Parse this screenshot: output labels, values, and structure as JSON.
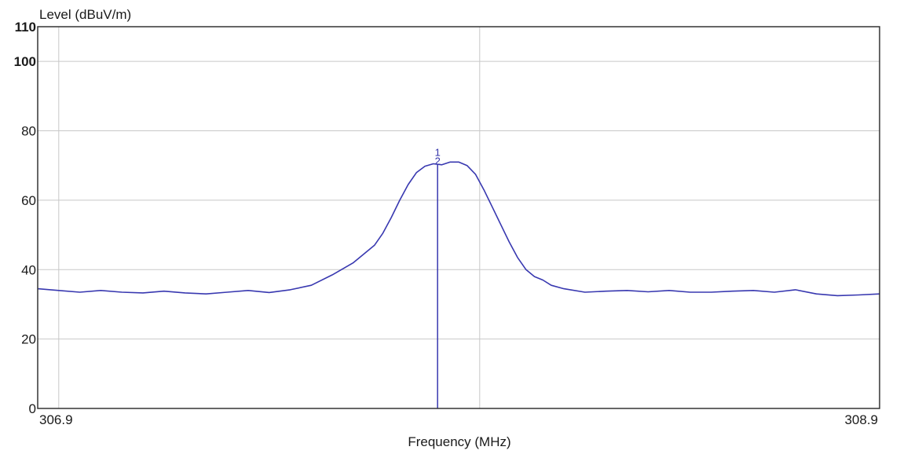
{
  "chart_data": {
    "type": "line",
    "title": "",
    "xlabel": "Frequency (MHz)",
    "ylabel": "Level (dBuV/m)",
    "xlim": [
      306.9,
      308.9
    ],
    "ylim": [
      0,
      110
    ],
    "x_tick_labels": [
      "306.9",
      "308.9"
    ],
    "y_tick_labels": [
      "0",
      "20",
      "40",
      "60",
      "80",
      "100",
      "110"
    ],
    "y_ticks": [
      0,
      20,
      40,
      60,
      80,
      100,
      110
    ],
    "grid": true,
    "line_color": "#3838b0",
    "series": [
      {
        "x": [
          306.9,
          306.95,
          307.0,
          307.05,
          307.1,
          307.15,
          307.2,
          307.25,
          307.3,
          307.35,
          307.4,
          307.45,
          307.5,
          307.55,
          307.6,
          307.65,
          307.7,
          307.72,
          307.74,
          307.76,
          307.78,
          307.8,
          307.82,
          307.84,
          307.86,
          307.88,
          307.9,
          307.92,
          307.94,
          307.96,
          307.98,
          308.0,
          308.02,
          308.04,
          308.06,
          308.08,
          308.1,
          308.12,
          308.15,
          308.2,
          308.25,
          308.3,
          308.35,
          308.4,
          308.45,
          308.5,
          308.55,
          308.6,
          308.65,
          308.7,
          308.75,
          308.8,
          308.85,
          308.9
        ],
        "y": [
          34.5,
          34.0,
          33.5,
          34.0,
          33.5,
          33.3,
          33.8,
          33.3,
          33.0,
          33.5,
          34.0,
          33.4,
          34.2,
          35.5,
          38.5,
          42.0,
          47.0,
          50.5,
          55.0,
          60.0,
          64.5,
          68.0,
          69.8,
          70.5,
          70.2,
          71.0,
          71.0,
          70.0,
          67.5,
          63.0,
          58.0,
          53.0,
          48.0,
          43.5,
          40.0,
          38.0,
          37.0,
          35.5,
          34.5,
          33.5,
          33.8,
          34.0,
          33.6,
          34.0,
          33.5,
          33.5,
          33.8,
          34.0,
          33.5,
          34.2,
          33.0,
          32.5,
          32.7,
          33.0
        ]
      }
    ],
    "markers": [
      {
        "label": "1",
        "x": 307.85,
        "y": 70.5
      },
      {
        "label": "2",
        "x": 307.85,
        "y": 70.0
      }
    ]
  }
}
